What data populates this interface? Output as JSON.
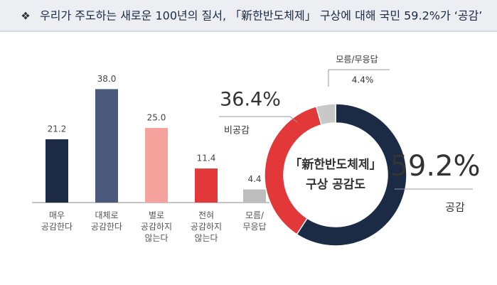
{
  "header": {
    "title": "우리가 주도하는 새로운 100년의 질서, 「新한반도체제」 구상에 대해 국민 59.2%가 ‘공감’"
  },
  "chart_data": [
    {
      "type": "bar",
      "categories": [
        "매우\n공감한다",
        "대체로\n공감한다",
        "별로\n공감하지\n않는다",
        "전혀\n공감하지\n않는다",
        "모름/\n무응답"
      ],
      "values": [
        21.2,
        38.0,
        25.0,
        11.4,
        4.4
      ],
      "value_labels": [
        "21.2",
        "38.0",
        "25.0",
        "11.4",
        "4.4"
      ],
      "colors": [
        "#1b2a45",
        "#4b5a7c",
        "#f4a29b",
        "#e2383a",
        "#bdbdbd"
      ]
    },
    {
      "type": "donut",
      "center_label": "「新한반도체제」\n구상 공감도",
      "categories": [
        "공감",
        "비공감",
        "모름/무응답"
      ],
      "values": [
        59.2,
        36.4,
        4.4
      ],
      "value_labels": [
        "59.2%",
        "36.4%",
        "4.4%"
      ],
      "colors": [
        "#1b2a45",
        "#e2383a",
        "#c8c8c8"
      ]
    }
  ]
}
